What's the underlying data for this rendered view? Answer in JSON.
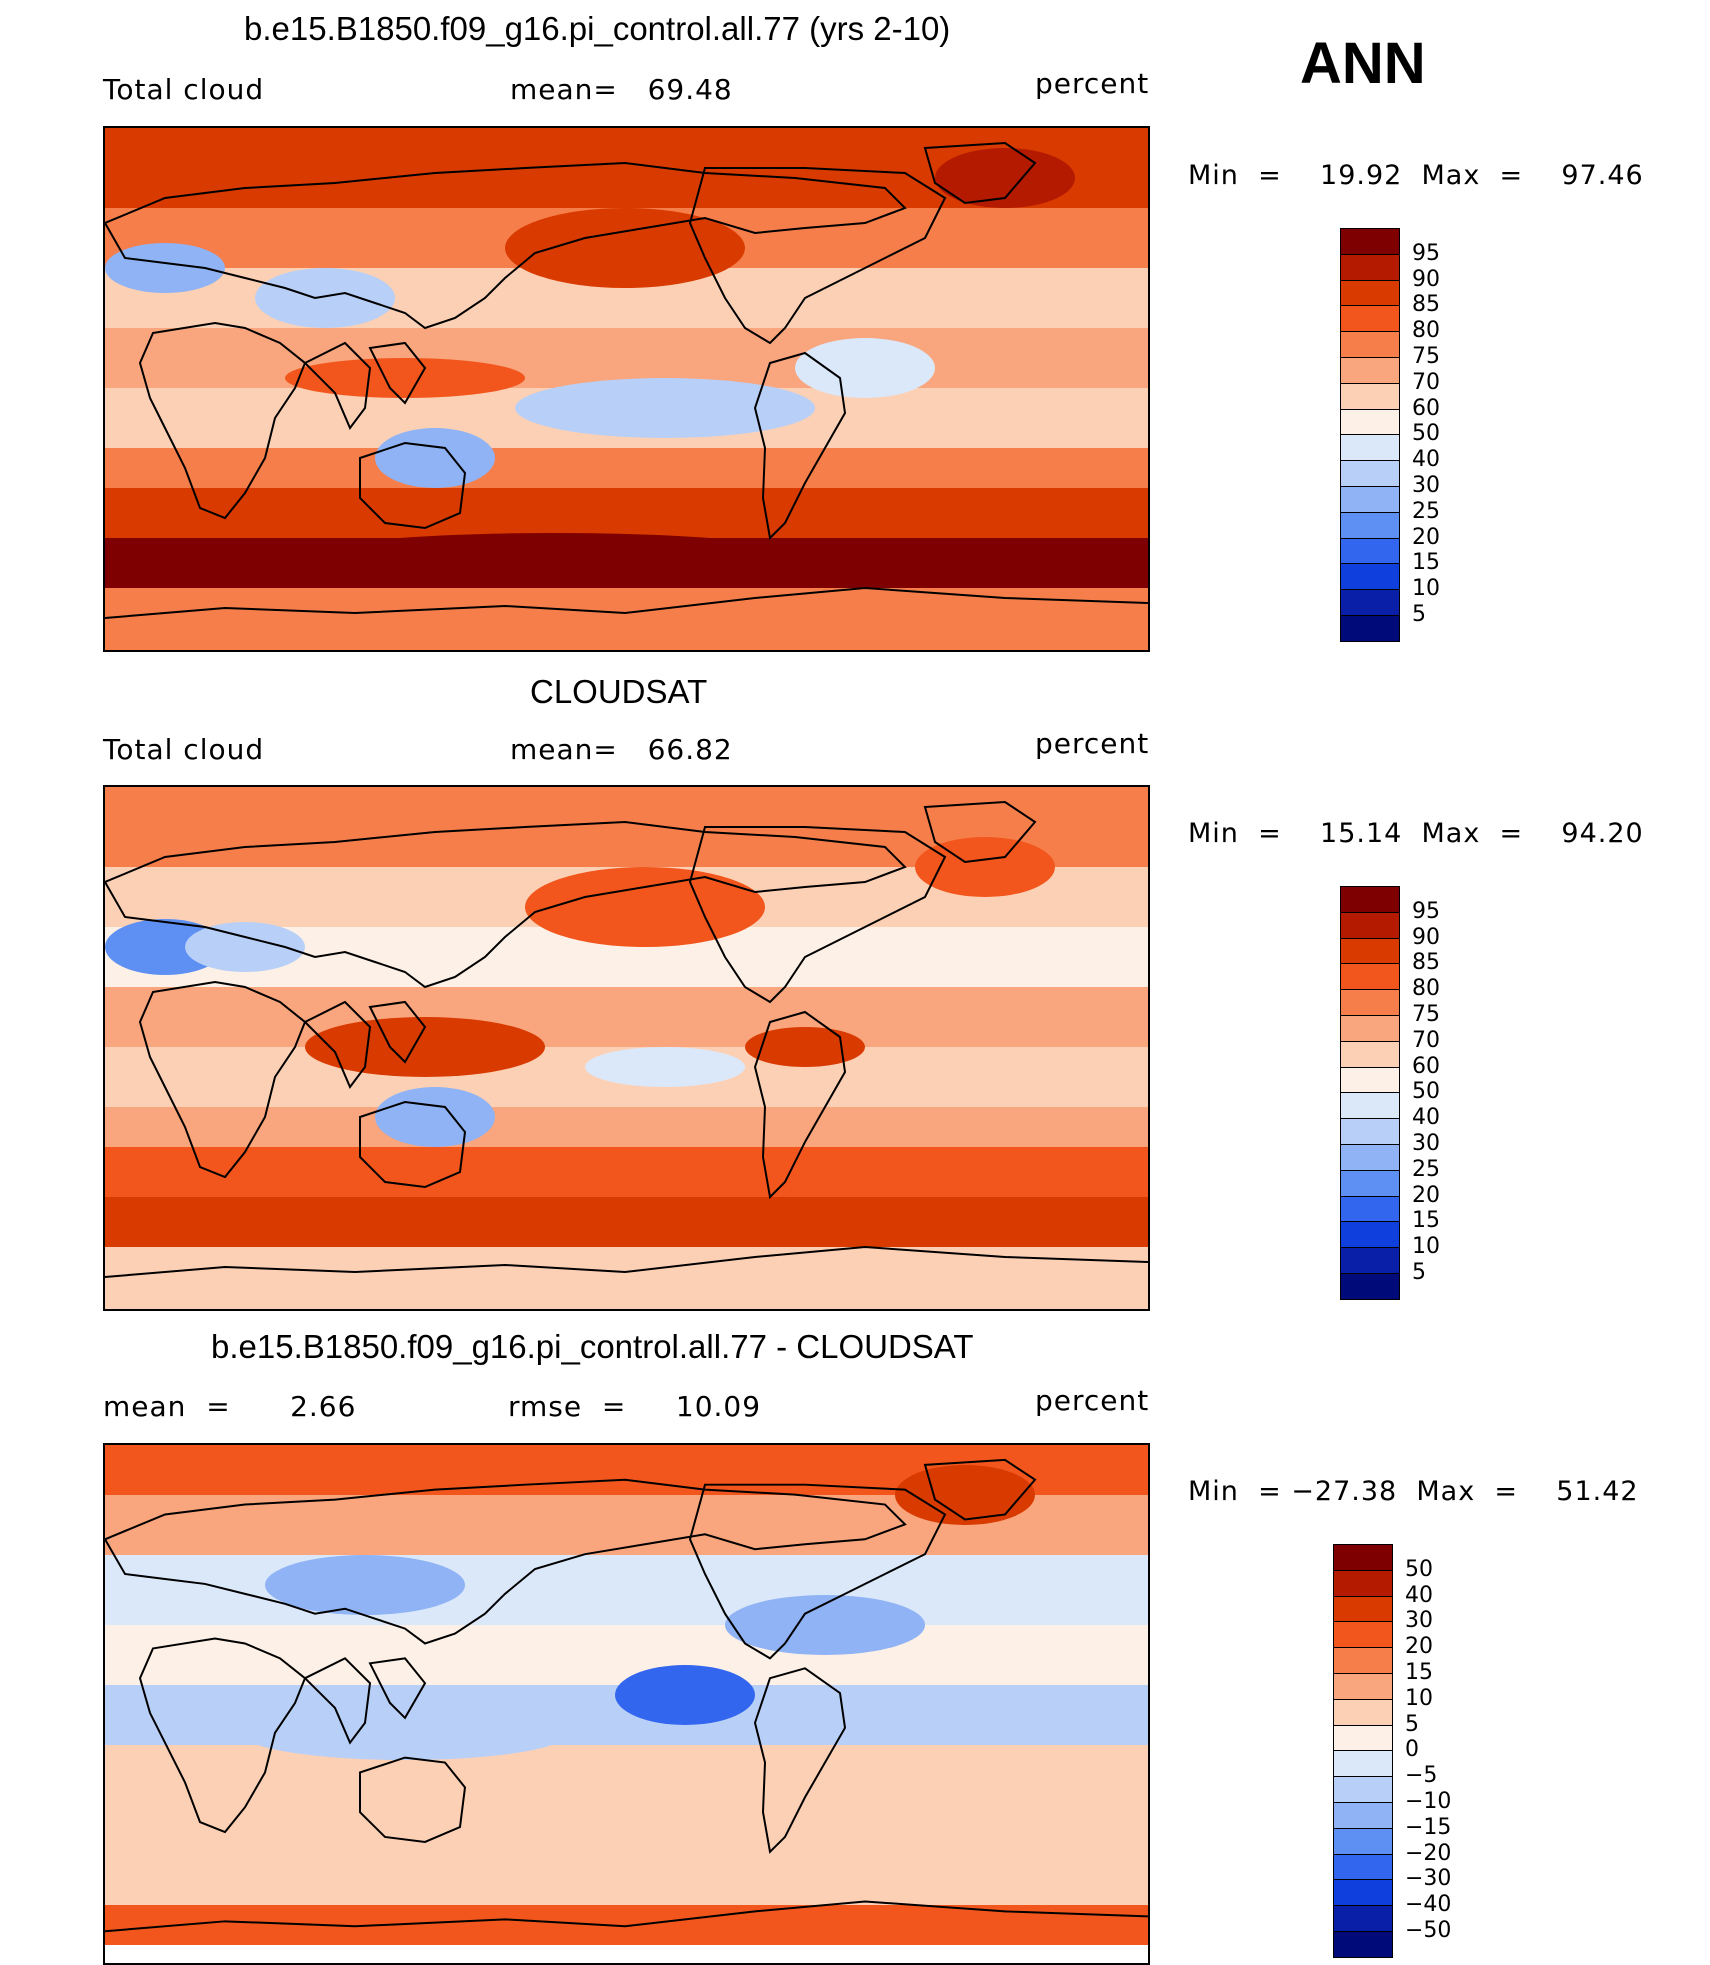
{
  "season": "ANN",
  "panels": [
    {
      "title": "b.e15.B1850.f09_g16.pi_control.all.77 (yrs 2-10)",
      "left_label": "Total cloud",
      "center_label": "mean=   69.48",
      "right_label": "percent",
      "minmax": "Min  =    19.92  Max  =    97.46",
      "kind": "abs"
    },
    {
      "title": "CLOUDSAT",
      "left_label": "Total cloud",
      "center_label": "mean=   66.82",
      "right_label": "percent",
      "minmax": "Min  =    15.14  Max  =    94.20",
      "kind": "abs"
    },
    {
      "title": "b.e15.B1850.f09_g16.pi_control.all.77 - CLOUDSAT",
      "left_label": "mean  =      2.66",
      "center_label": "rmse  =     10.09",
      "right_label": "percent",
      "minmax": "Min  = −27.38  Max  =    51.42",
      "kind": "diff"
    }
  ],
  "colorbar_abs": {
    "levels": [
      "95",
      "90",
      "85",
      "80",
      "75",
      "70",
      "60",
      "50",
      "40",
      "30",
      "25",
      "20",
      "15",
      "10",
      "5"
    ],
    "colors": [
      "#7f0000",
      "#b31a00",
      "#d93a00",
      "#f2561c",
      "#f67e4b",
      "#f9a57d",
      "#fcd0b5",
      "#fdf0e6",
      "#dbe8fa",
      "#b8cff7",
      "#8fb3f5",
      "#5e8ff2",
      "#3266ee",
      "#0f3fdc",
      "#0a1fa8",
      "#000a78"
    ]
  },
  "colorbar_diff": {
    "levels": [
      "50",
      "40",
      "30",
      "20",
      "15",
      "10",
      "5",
      "0",
      "−5",
      "−10",
      "−15",
      "−20",
      "−30",
      "−40",
      "−50"
    ],
    "colors": [
      "#7f0000",
      "#b31a00",
      "#d93a00",
      "#f2561c",
      "#f67e4b",
      "#f9a57d",
      "#fcd0b5",
      "#fdf0e6",
      "#dbe8fa",
      "#b8cff7",
      "#8fb3f5",
      "#5e8ff2",
      "#3266ee",
      "#0f3fdc",
      "#0a1fa8",
      "#000a78"
    ]
  }
}
